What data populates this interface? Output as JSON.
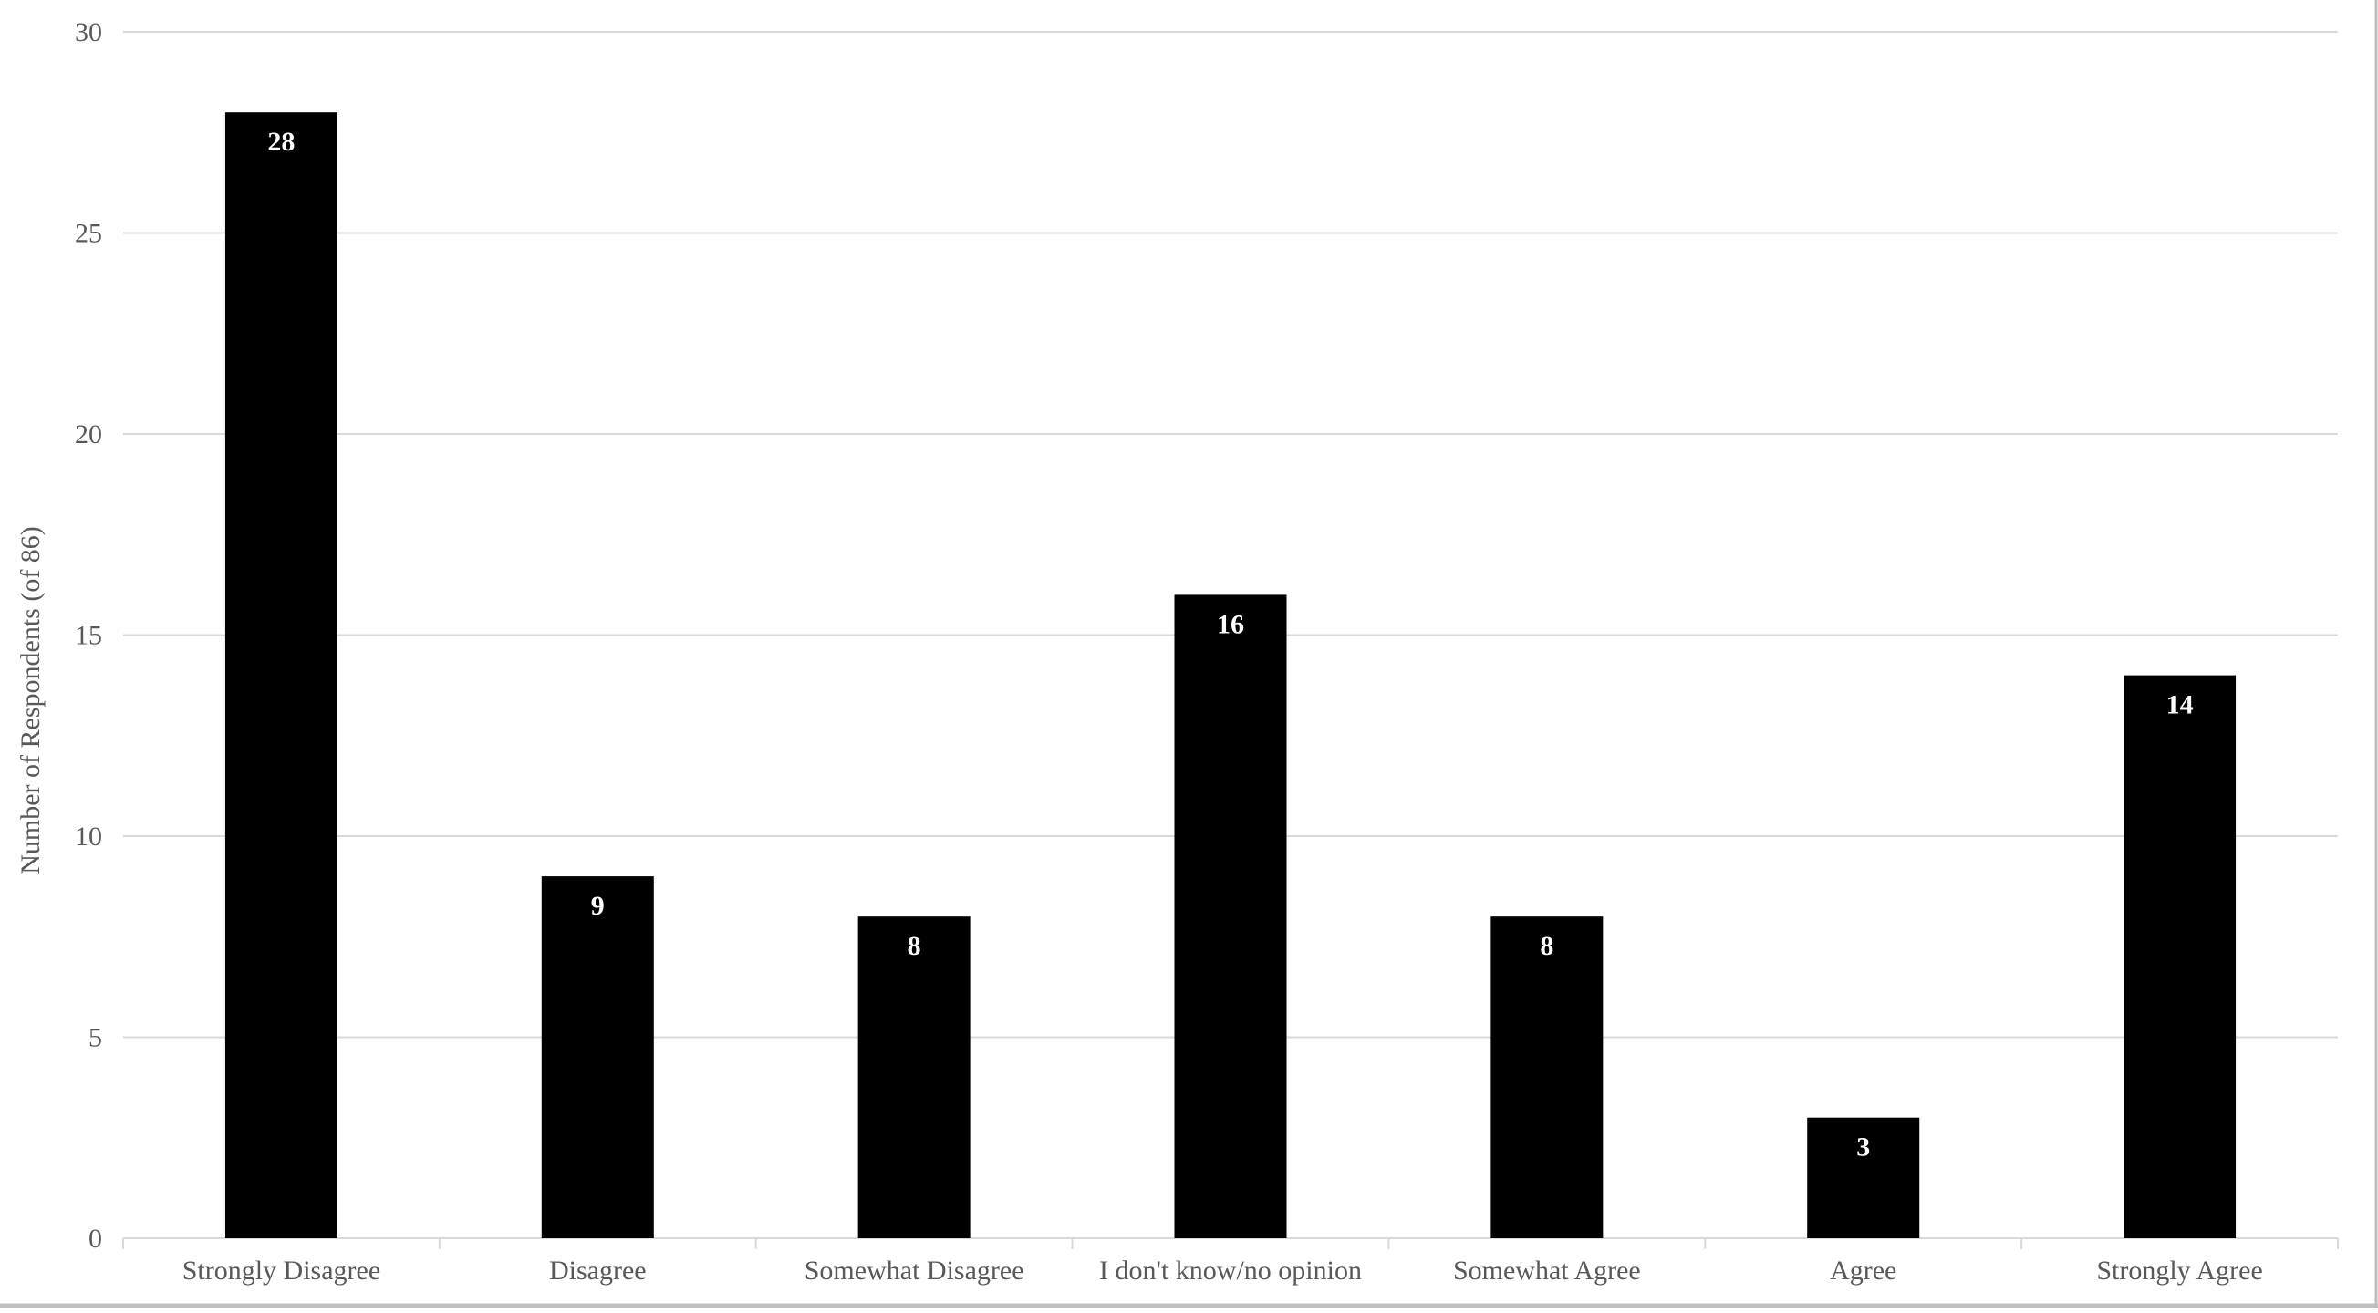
{
  "chart_data": {
    "type": "bar",
    "categories": [
      "Strongly Disagree",
      "Disagree",
      "Somewhat Disagree",
      "I don't know/no opinion",
      "Somewhat Agree",
      "Agree",
      "Strongly Agree"
    ],
    "values": [
      28,
      9,
      8,
      16,
      8,
      3,
      14
    ],
    "data_labels": [
      "28",
      "9",
      "8",
      "16",
      "8",
      "3",
      "14"
    ],
    "title": "",
    "xlabel": "",
    "ylabel": "Number of Respondents (of 86)",
    "ylim": [
      0,
      30
    ],
    "yticks": [
      "0",
      "5",
      "10",
      "15",
      "20",
      "25",
      "30"
    ],
    "grid": true,
    "legend": "none",
    "bar_color": "#000000",
    "grid_color": "#d9d9d9",
    "label_color": "#595959"
  }
}
